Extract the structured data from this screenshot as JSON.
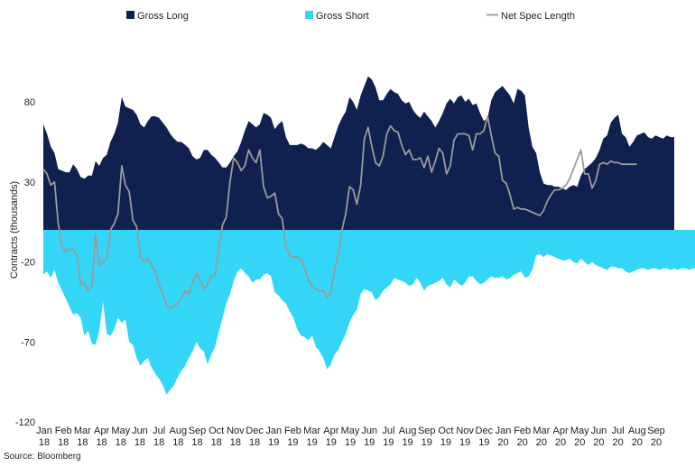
{
  "chart_data": {
    "type": "area",
    "ylabel": "Contracts (thousands)",
    "ylim": [
      -120,
      100
    ],
    "yticks": [
      80,
      30,
      -20,
      -70,
      -120
    ],
    "grid": false,
    "legend_position": "top",
    "x_month_labels": [
      "Jan",
      "Feb",
      "Mar",
      "Apr",
      "May",
      "Jun",
      "Jul",
      "Aug",
      "Sep",
      "Oct",
      "Nov",
      "Dec",
      "Jan",
      "Feb",
      "Mar",
      "Apr",
      "May",
      "Jun",
      "Jul",
      "Aug",
      "Sep",
      "Oct",
      "Nov",
      "Dec",
      "Jan",
      "Feb",
      "Mar",
      "Apr",
      "May",
      "Jun",
      "Jul",
      "Aug",
      "Sep"
    ],
    "x_year_labels": [
      "18",
      "18",
      "18",
      "18",
      "18",
      "18",
      "18",
      "18",
      "18",
      "18",
      "18",
      "18",
      "19",
      "19",
      "19",
      "19",
      "19",
      "19",
      "19",
      "19",
      "19",
      "19",
      "19",
      "19",
      "20",
      "20",
      "20",
      "20",
      "20",
      "20",
      "20",
      "20",
      "20"
    ],
    "source": "Source: Bloomberg",
    "series": [
      {
        "name": "Gross Long",
        "kind": "area",
        "color": "#10204f",
        "values": [
          66,
          60,
          52,
          48,
          38,
          37,
          36,
          36,
          41,
          38,
          33,
          32,
          34,
          34,
          43,
          40,
          45,
          47,
          55,
          60,
          67,
          83,
          77,
          76,
          75,
          72,
          66,
          64,
          68,
          71,
          71,
          70,
          67,
          64,
          60,
          57,
          55,
          55,
          53,
          51,
          46,
          44,
          45,
          50,
          50,
          47,
          45,
          42,
          39,
          39,
          42,
          46,
          49,
          55,
          62,
          68,
          66,
          64,
          66,
          73,
          72,
          70,
          63,
          66,
          68,
          58,
          53,
          53,
          53,
          54,
          53,
          51,
          51,
          50,
          52,
          55,
          53,
          51,
          58,
          65,
          70,
          74,
          83,
          80,
          75,
          84,
          90,
          96,
          94,
          89,
          81,
          81,
          85,
          88,
          86,
          85,
          81,
          79,
          80,
          75,
          72,
          70,
          74,
          71,
          68,
          64,
          68,
          73,
          79,
          82,
          79,
          83,
          84,
          80,
          82,
          78,
          79,
          73,
          68,
          70,
          81,
          86,
          88,
          90,
          87,
          84,
          79,
          88,
          87,
          84,
          64,
          52,
          48,
          36,
          29,
          28,
          28,
          27,
          27,
          26,
          25,
          27,
          28,
          27,
          34,
          38,
          40,
          42,
          45,
          50,
          57,
          59,
          67,
          70,
          72,
          60,
          58,
          52,
          55,
          59,
          60,
          61,
          58,
          57,
          59,
          58,
          57,
          59,
          58,
          58
        ],
        "_note": "values are approximate in thousands of contracts"
      },
      {
        "name": "Gross Short",
        "kind": "area",
        "color": "#33d6f7",
        "values": [
          -28,
          -26,
          -30,
          -25,
          -33,
          -38,
          -43,
          -48,
          -53,
          -52,
          -55,
          -66,
          -63,
          -71,
          -72,
          -63,
          -45,
          -65,
          -66,
          -62,
          -55,
          -58,
          -56,
          -70,
          -72,
          -80,
          -85,
          -82,
          -80,
          -86,
          -90,
          -93,
          -97,
          -103,
          -100,
          -97,
          -92,
          -88,
          -85,
          -80,
          -76,
          -70,
          -74,
          -76,
          -84,
          -78,
          -73,
          -64,
          -55,
          -46,
          -40,
          -32,
          -26,
          -24,
          -27,
          -29,
          -33,
          -31,
          -31,
          -28,
          -27,
          -29,
          -39,
          -41,
          -44,
          -46,
          -51,
          -55,
          -62,
          -66,
          -67,
          -69,
          -66,
          -73,
          -76,
          -80,
          -87,
          -84,
          -78,
          -75,
          -70,
          -65,
          -58,
          -53,
          -50,
          -40,
          -37,
          -38,
          -39,
          -44,
          -42,
          -38,
          -36,
          -34,
          -30,
          -31,
          -32,
          -33,
          -35,
          -34,
          -30,
          -33,
          -38,
          -35,
          -34,
          -33,
          -32,
          -30,
          -34,
          -36,
          -31,
          -33,
          -35,
          -33,
          -29,
          -29,
          -32,
          -34,
          -33,
          -31,
          -29,
          -30,
          -30,
          -29,
          -31,
          -30,
          -28,
          -27,
          -26,
          -30,
          -29,
          -25,
          -16,
          -15,
          -17,
          -15,
          -16,
          -17,
          -18,
          -19,
          -19,
          -18,
          -20,
          -21,
          -18,
          -20,
          -22,
          -20,
          -22,
          -23,
          -24,
          -25,
          -23,
          -23,
          -24,
          -24,
          -26,
          -27,
          -26,
          -25,
          -24,
          -24,
          -25,
          -24,
          -24,
          -25,
          -24,
          -24,
          -25,
          -24,
          -25,
          -24,
          -24,
          -25,
          -24,
          -24
        ]
      },
      {
        "name": "Net Spec Length",
        "kind": "line",
        "color": "#9a9a9a",
        "values": [
          38,
          35,
          28,
          30,
          4,
          -10,
          -14,
          -12,
          -12,
          -16,
          -34,
          -33,
          -38,
          -35,
          -3,
          -22,
          -20,
          -18,
          0,
          4,
          10,
          40,
          28,
          24,
          6,
          2,
          -17,
          -20,
          -18,
          -22,
          -26,
          -34,
          -40,
          -47,
          -49,
          -48,
          -46,
          -43,
          -38,
          -40,
          -33,
          -27,
          -31,
          -37,
          -34,
          -29,
          -28,
          -12,
          3,
          8,
          30,
          45,
          42,
          37,
          40,
          50,
          45,
          42,
          50,
          27,
          20,
          21,
          23,
          10,
          7,
          -11,
          -16,
          -17,
          -17,
          -18,
          -24,
          -31,
          -35,
          -37,
          -38,
          -38,
          -42,
          -40,
          -25,
          -15,
          0,
          10,
          27,
          25,
          16,
          28,
          57,
          64,
          52,
          42,
          40,
          46,
          60,
          65,
          62,
          61,
          53,
          47,
          50,
          44,
          44,
          45,
          39,
          46,
          36,
          43,
          51,
          48,
          35,
          40,
          56,
          60,
          60,
          60,
          59,
          50,
          60,
          60,
          62,
          71,
          59,
          48,
          46,
          31,
          29,
          22,
          13,
          14,
          13,
          13,
          12,
          11,
          10,
          9,
          12,
          18,
          22,
          25,
          25,
          26,
          28,
          32,
          38,
          44,
          50,
          35,
          35,
          26,
          31,
          41,
          42,
          41,
          43,
          42,
          42,
          41,
          41,
          41,
          41,
          41
        ],
        "_note": "values are approximate"
      }
    ]
  },
  "legend": {
    "items": [
      {
        "label": "Gross Long",
        "color": "#10204f",
        "kind": "box"
      },
      {
        "label": "Gross Short",
        "color": "#33d6f7",
        "kind": "box"
      },
      {
        "label": "Net Spec Length",
        "color": "#9a9a9a",
        "kind": "line"
      }
    ]
  },
  "footer": {
    "source": "Source: Bloomberg"
  }
}
